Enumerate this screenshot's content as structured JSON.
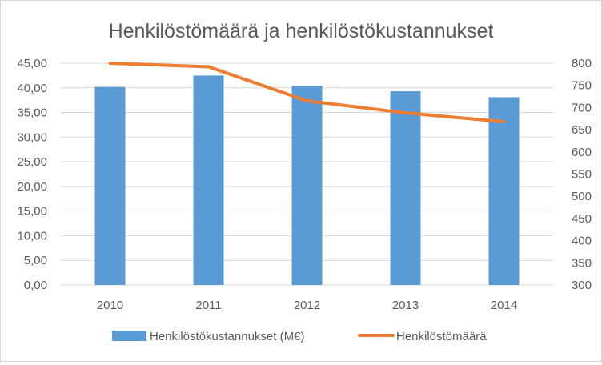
{
  "chart_data": {
    "type": "bar+line",
    "title": "Henkilöstömäärä ja henkilöstökustannukset",
    "categories": [
      "2010",
      "2011",
      "2012",
      "2013",
      "2014"
    ],
    "series": [
      {
        "name": "Henkilöstökustannukset (M€)",
        "type": "bar",
        "axis": "left",
        "color": "#5b9bd5",
        "values": [
          40.2,
          42.5,
          40.4,
          39.3,
          38.1
        ]
      },
      {
        "name": "Henkilöstömäärä",
        "type": "line",
        "axis": "right",
        "color": "#ed7d31",
        "values": [
          800,
          792,
          715,
          688,
          668
        ]
      }
    ],
    "y_left": {
      "min": 0,
      "max": 45,
      "step": 5,
      "tick_labels": [
        "0,00",
        "5,00",
        "10,00",
        "15,00",
        "20,00",
        "25,00",
        "30,00",
        "35,00",
        "40,00",
        "45,00"
      ]
    },
    "y_right": {
      "min": 300,
      "max": 800,
      "step": 50,
      "tick_labels": [
        "300",
        "350",
        "400",
        "450",
        "500",
        "550",
        "600",
        "650",
        "700",
        "750",
        "800"
      ]
    },
    "grid": true,
    "legend_position": "bottom"
  }
}
